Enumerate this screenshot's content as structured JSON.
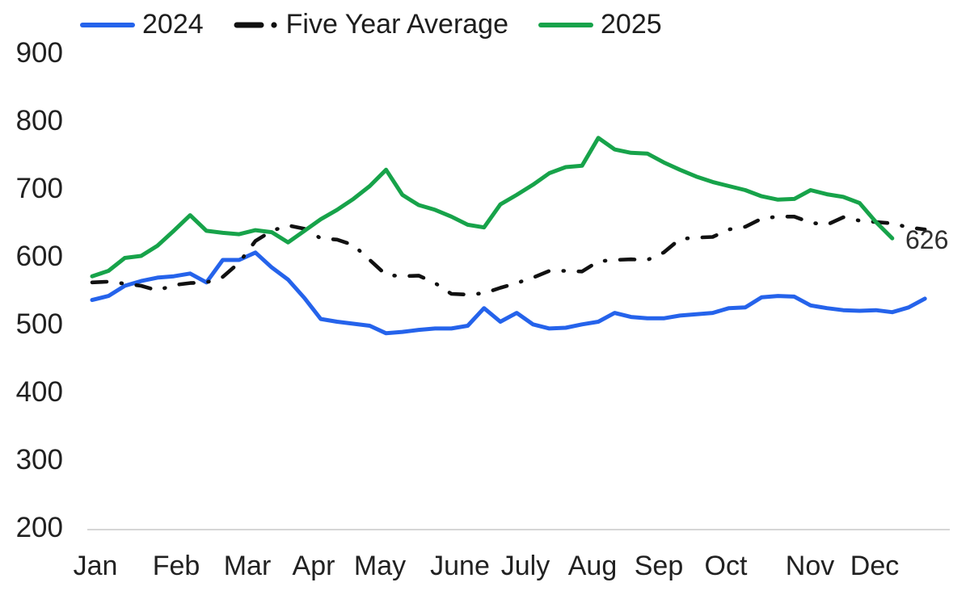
{
  "legend": {
    "items": [
      {
        "label": "2024",
        "color": "#2563eb",
        "line_style": "solid"
      },
      {
        "label": "Five Year Average",
        "color": "#111111",
        "line_style": "dash-dot"
      },
      {
        "label": "2025",
        "color": "#17a34a",
        "line_style": "solid"
      }
    ]
  },
  "chart_data": {
    "type": "line",
    "title": "",
    "x_axis": {
      "unit": "weekly",
      "labels": [
        "Jan",
        "Feb",
        "Mar",
        "Apr",
        "May",
        "June",
        "July",
        "Aug",
        "Sep",
        "Oct",
        "Nov",
        "Dec"
      ]
    },
    "y_axis": {
      "min": 200,
      "max": 900,
      "ticks": [
        900,
        800,
        700,
        600,
        500,
        400,
        300,
        200
      ]
    },
    "grid": "off",
    "legend_position": "top-left",
    "series": [
      {
        "name": "2024",
        "color": "#2563eb",
        "style": "solid",
        "values": [
          535,
          541,
          556,
          563,
          568,
          570,
          574,
          561,
          594,
          594,
          605,
          583,
          565,
          538,
          507,
          503,
          500,
          497,
          486,
          488,
          491,
          493,
          493,
          497,
          523,
          503,
          516,
          499,
          493,
          494,
          499,
          503,
          516,
          510,
          508,
          508,
          512,
          514,
          516,
          523,
          524,
          539,
          541,
          540,
          527,
          523,
          520,
          519,
          520,
          517,
          524,
          537
        ]
      },
      {
        "name": "Five Year Average",
        "color": "#111111",
        "style": "dash-dot",
        "values": [
          561,
          562,
          559,
          556,
          549,
          557,
          560,
          561,
          569,
          590,
          622,
          637,
          645,
          640,
          626,
          624,
          616,
          594,
          572,
          570,
          571,
          560,
          544,
          543,
          545,
          553,
          560,
          568,
          578,
          578,
          577,
          592,
          594,
          595,
          594,
          605,
          625,
          627,
          628,
          639,
          643,
          655,
          658,
          658,
          649,
          646,
          657,
          652,
          650,
          648,
          642,
          639
        ]
      },
      {
        "name": "2025",
        "color": "#17a34a",
        "style": "solid",
        "values": [
          570,
          578,
          597,
          600,
          615,
          637,
          660,
          637,
          634,
          632,
          638,
          635,
          620,
          637,
          654,
          668,
          684,
          703,
          727,
          690,
          675,
          668,
          658,
          646,
          642,
          676,
          690,
          705,
          722,
          731,
          733,
          774,
          757,
          752,
          751,
          738,
          727,
          717,
          709,
          703,
          697,
          688,
          683,
          684,
          697,
          691,
          687,
          678,
          650,
          626
        ]
      }
    ],
    "end_label": {
      "text": "626",
      "value": 626,
      "series": "2025"
    }
  }
}
